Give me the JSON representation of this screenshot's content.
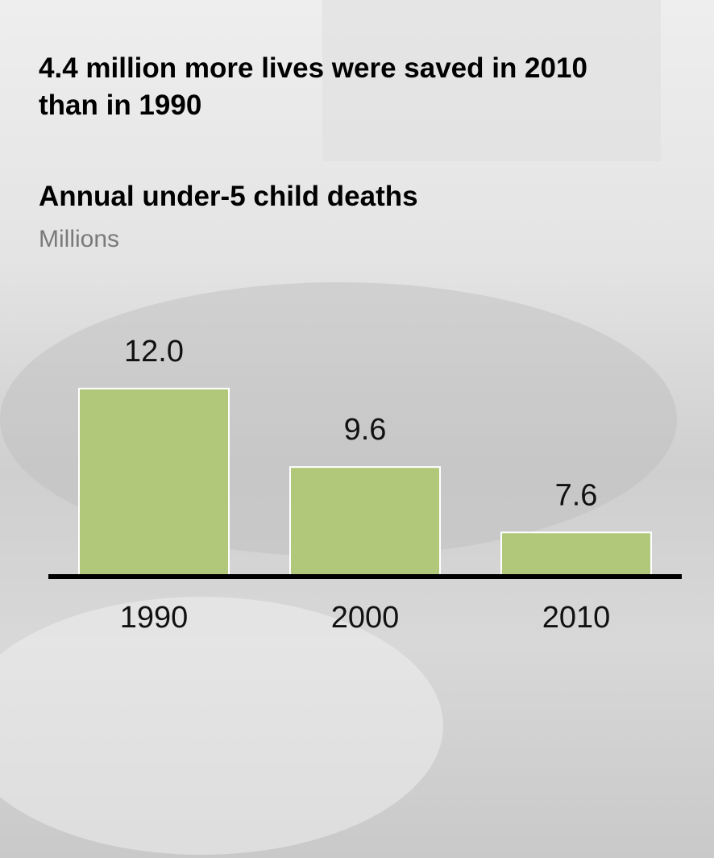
{
  "chart_data": {
    "type": "bar",
    "headline": "4.4 million more lives were saved in 2010 than in 1990",
    "title": "Annual under-5 child deaths",
    "subtitle": "Millions",
    "categories": [
      "1990",
      "2000",
      "2010"
    ],
    "values": [
      12.0,
      9.6,
      7.6
    ],
    "value_labels": [
      "12.0",
      "9.6",
      "7.6"
    ],
    "color": "#b1c87b",
    "ylim": [
      6.25,
      13.5
    ]
  }
}
